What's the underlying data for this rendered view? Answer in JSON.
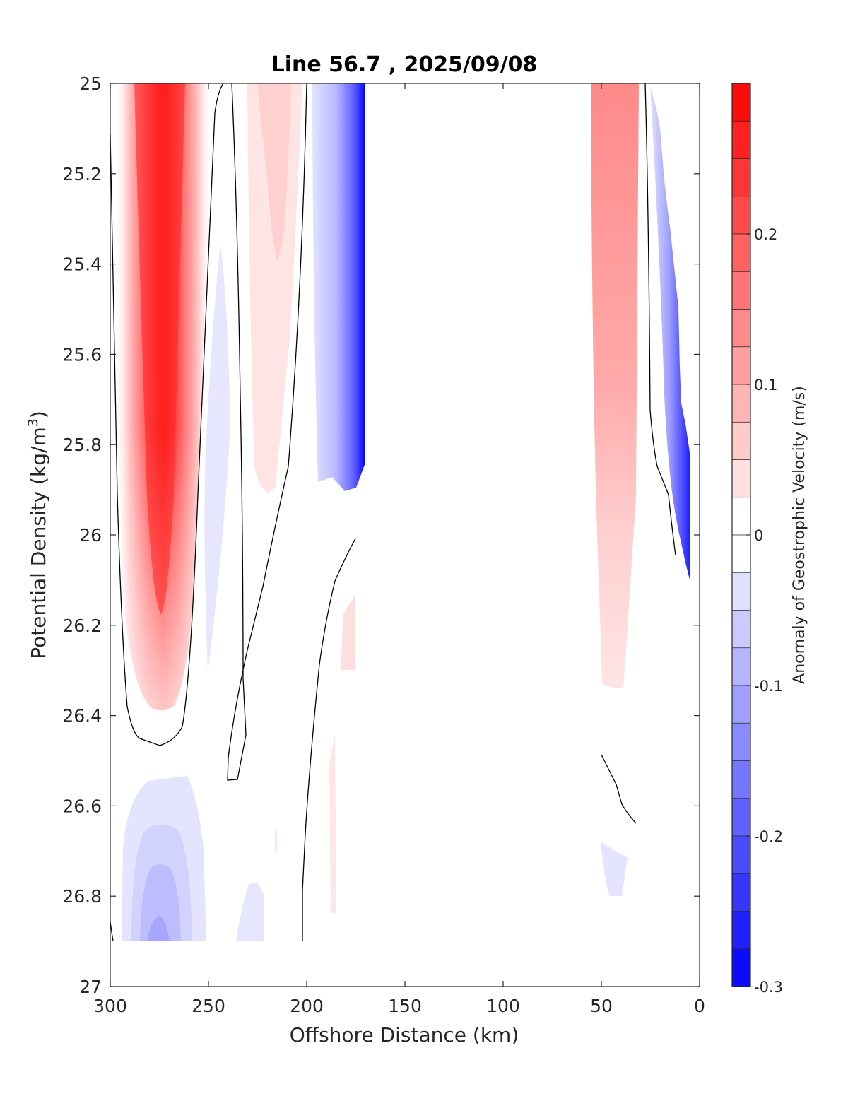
{
  "chart_data": {
    "type": "heatmap",
    "subtype": "filled-contour",
    "title": "Line 56.7 , 2025/09/08",
    "xlabel": "Offshore Distance (km)",
    "ylabel": "Potential Density (kg/m",
    "ylabel_superscript": "3",
    "ylabel_suffix": ")",
    "xlim": [
      300,
      0
    ],
    "ylim": [
      25,
      27
    ],
    "x_reversed": true,
    "y_reversed": true,
    "x_ticks": [
      300,
      250,
      200,
      150,
      100,
      50,
      0
    ],
    "y_ticks": [
      25,
      25.2,
      25.4,
      25.6,
      25.8,
      26,
      26.2,
      26.4,
      26.6,
      26.8,
      27
    ],
    "x_tick_labels": [
      "300",
      "250",
      "200",
      "150",
      "100",
      "50",
      "0"
    ],
    "y_tick_labels": [
      "25",
      "25.2",
      "25.4",
      "25.6",
      "25.8",
      "26",
      "26.2",
      "26.4",
      "26.6",
      "26.8",
      "27"
    ],
    "colorbar": {
      "label": "Anomaly of Geostrophic Velocity (m/s)",
      "min": -0.3,
      "max": 0.3,
      "levels": 24,
      "ticks": [
        -0.3,
        -0.2,
        -0.1,
        0,
        0.1,
        0.2
      ],
      "tick_labels": [
        "-0.3",
        "-0.2",
        "-0.1",
        "0",
        "0.1",
        "0.2"
      ],
      "color_negative": "#0000ff",
      "color_zero": "#ffffff",
      "color_positive": "#ff0000"
    },
    "features": [
      {
        "name": "core positive jet",
        "x_center": 275,
        "x_range": [
          295,
          255
        ],
        "sigma_range": [
          25,
          26.45
        ],
        "peak_value": 0.28
      },
      {
        "name": "positive band",
        "x_center": 215,
        "x_range": [
          232,
          198
        ],
        "sigma_range": [
          25,
          25.9
        ],
        "peak_value": 0.06
      },
      {
        "name": "negative band",
        "x_center": 180,
        "x_range": [
          197,
          171
        ],
        "sigma_range": [
          25,
          25.9
        ],
        "peak_value": -0.3
      },
      {
        "name": "weak negative band",
        "x_center": 245,
        "x_range": [
          253,
          236
        ],
        "sigma_range": [
          25.35,
          26.3
        ],
        "peak_value": -0.03
      },
      {
        "name": "deep negative lobe",
        "x_center": 275,
        "x_range": [
          295,
          245
        ],
        "sigma_range": [
          26.53,
          26.9
        ],
        "peak_value": -0.1
      },
      {
        "name": "nearshore positive band",
        "x_center": 48,
        "x_range": [
          58,
          28
        ],
        "sigma_range": [
          25,
          26.35
        ],
        "peak_value": 0.16
      },
      {
        "name": "nearshore negative band",
        "x_center": 12,
        "x_range": [
          25,
          5
        ],
        "sigma_range": [
          25,
          26.1
        ],
        "peak_value": -0.3
      }
    ]
  }
}
